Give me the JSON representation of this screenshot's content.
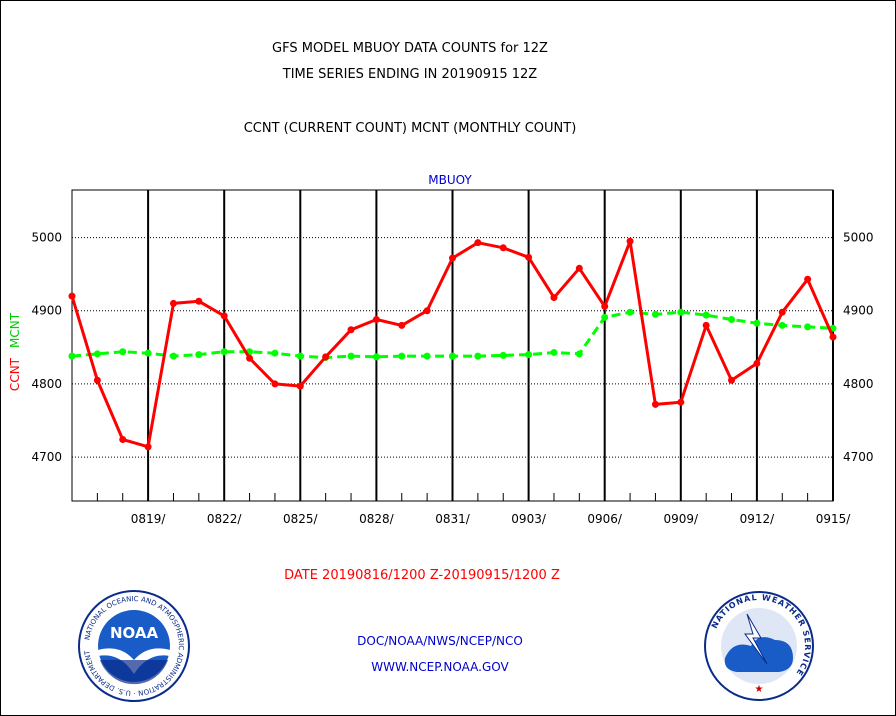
{
  "title_lines": [
    "GFS MODEL MBUOY DATA COUNTS for 12Z",
    "TIME SERIES ENDING IN 20190915 12Z"
  ],
  "subtitle": "CCNT (CURRENT COUNT) MCNT (MONTHLY COUNT)",
  "footer": {
    "line1": "DOC/NOAA/NWS/NCEP/NCO",
    "line2": "WWW.NCEP.NOAA.GOV"
  },
  "logos": {
    "noaa": {
      "center_text": "NOAA",
      "ring_text": "NATIONAL OCEANIC AND ATMOSPHERIC ADMINISTRATION · U.S. DEPARTMENT OF COMMERCE"
    },
    "nws": {
      "ring_text": "NATIONAL WEATHER SERVICE"
    }
  },
  "colors": {
    "ccnt": "#ff0000",
    "mcnt": "#00ff00",
    "title": "#000000",
    "xlabel": "#ff0000",
    "footer": "#0000cc",
    "panel_title": "#0000cc"
  },
  "chart_data": {
    "type": "line",
    "title": "MBUOY",
    "xlabel": "DATE 20190816/1200 Z-20190915/1200 Z",
    "ylabel": [
      "CCNT",
      "MCNT"
    ],
    "ylim": [
      4640,
      5065
    ],
    "yticks": [
      4700,
      4800,
      4900,
      5000
    ],
    "grid": true,
    "x_ticks": [
      "0819/",
      "0822/",
      "0825/",
      "0828/",
      "0831/",
      "0903/",
      "0906/",
      "0909/",
      "0912/",
      "0915/"
    ],
    "x": [
      "0816",
      "0817",
      "0818",
      "0819",
      "0820",
      "0821",
      "0822",
      "0823",
      "0824",
      "0825",
      "0826",
      "0827",
      "0828",
      "0829",
      "0830",
      "0831",
      "0901",
      "0902",
      "0903",
      "0904",
      "0905",
      "0906",
      "0907",
      "0908",
      "0909",
      "0910",
      "0911",
      "0912",
      "0913",
      "0914",
      "0915"
    ],
    "series": [
      {
        "name": "CCNT",
        "color": "#ff0000",
        "values": [
          4920,
          4805,
          4724,
          4714,
          4910,
          4913,
          4893,
          4835,
          4800,
          4797,
          4837,
          4874,
          4888,
          4880,
          4900,
          4972,
          4993,
          4986,
          4973,
          4918,
          4958,
          4906,
          4995,
          4772,
          4775,
          4880,
          4805,
          4828,
          4898,
          4943,
          4864
        ]
      },
      {
        "name": "MCNT",
        "color": "#00ff00",
        "values": [
          4838,
          4841,
          4844,
          4842,
          4838,
          4840,
          4844,
          4844,
          4842,
          4838,
          4836,
          4838,
          4837,
          4838,
          4838,
          4838,
          4838,
          4839,
          4840,
          4843,
          4841,
          4891,
          4898,
          4895,
          4898,
          4894,
          4888,
          4883,
          4880,
          4878,
          4876
        ]
      }
    ]
  }
}
